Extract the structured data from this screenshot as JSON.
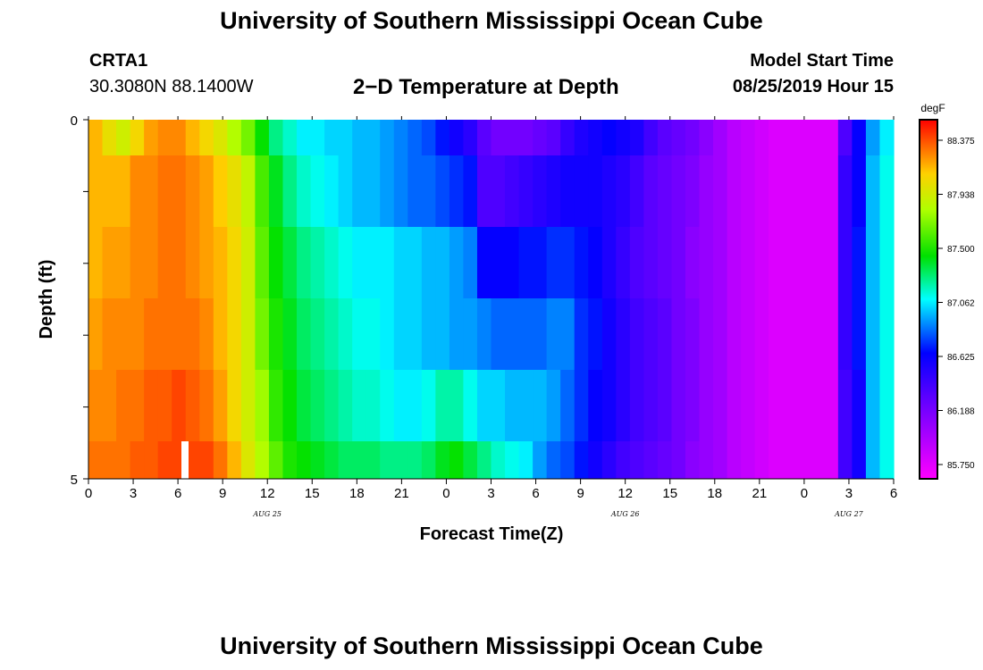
{
  "header": {
    "title": "University of Southern Mississippi Ocean Cube",
    "station_id": "CRTA1",
    "station_coords": "30.3080N 88.1400W",
    "plot_title": "2−D Temperature at Depth",
    "model_label": "Model Start Time",
    "model_time": "08/25/2019 Hour 15"
  },
  "footer": {
    "title": "University of Southern Mississippi Ocean Cube"
  },
  "chart_data": {
    "type": "heatmap",
    "xlabel": "Forecast Time(Z)",
    "ylabel": "Depth (ft)",
    "x_tick_labels": [
      "0",
      "3",
      "6",
      "9",
      "12",
      "15",
      "18",
      "21",
      "0",
      "3",
      "6",
      "9",
      "12",
      "15",
      "18",
      "21",
      "0",
      "3",
      "6"
    ],
    "x_date_labels": [
      {
        "label": "AUG 25",
        "tick_index": 4
      },
      {
        "label": "AUG 26",
        "tick_index": 12
      },
      {
        "label": "AUG 27",
        "tick_index": 17
      }
    ],
    "y_tick_labels": [
      "0",
      "5"
    ],
    "ylim": [
      0,
      5
    ],
    "hours_total": 54,
    "colorbar": {
      "unit": "degF",
      "min": 85.55,
      "max": 88.6,
      "tick_labels": [
        "88.375",
        "87.938",
        "87.500",
        "87.062",
        "86.625",
        "86.188",
        "85.750"
      ]
    },
    "depth_bands": [
      "0-0.5",
      "0.5-1.5",
      "1.5-2.5",
      "2.5-3.5",
      "3.5-4.5",
      "4.5-5"
    ],
    "rows": [
      [
        88.2,
        88.05,
        87.95,
        88.1,
        88.25,
        88.3,
        88.3,
        88.2,
        88.1,
        88.0,
        87.85,
        87.7,
        87.45,
        87.25,
        87.15,
        87.05,
        87.05,
        87.0,
        87.0,
        86.95,
        86.95,
        86.9,
        86.85,
        86.8,
        86.75,
        86.65,
        86.55,
        86.45,
        86.25,
        86.15,
        86.15,
        86.15,
        86.2,
        86.25,
        86.4,
        86.5,
        86.55,
        86.6,
        86.55,
        86.5,
        86.35,
        86.25,
        86.2,
        86.15,
        86.05,
        85.95,
        85.85,
        85.8,
        85.75,
        85.7,
        85.7,
        85.7,
        85.7,
        85.7,
        86.3,
        86.6,
        86.9,
        87.05
      ],
      [
        88.2,
        88.2,
        88.2,
        88.3,
        88.3,
        88.35,
        88.35,
        88.3,
        88.25,
        88.15,
        88.05,
        87.9,
        87.6,
        87.4,
        87.25,
        87.15,
        87.1,
        87.05,
        87.0,
        86.95,
        86.95,
        86.9,
        86.85,
        86.8,
        86.8,
        86.75,
        86.7,
        86.65,
        86.3,
        86.3,
        86.35,
        86.4,
        86.45,
        86.5,
        86.55,
        86.55,
        86.55,
        86.5,
        86.45,
        86.35,
        86.25,
        86.2,
        86.15,
        86.1,
        86.0,
        85.95,
        85.85,
        85.8,
        85.75,
        85.7,
        85.7,
        85.7,
        85.7,
        85.7,
        86.4,
        86.6,
        86.95,
        87.1
      ],
      [
        88.2,
        88.25,
        88.25,
        88.3,
        88.3,
        88.35,
        88.35,
        88.3,
        88.25,
        88.2,
        88.1,
        87.95,
        87.65,
        87.45,
        87.35,
        87.25,
        87.2,
        87.15,
        87.1,
        87.05,
        87.05,
        87.05,
        87.0,
        87.0,
        86.95,
        86.95,
        86.9,
        86.85,
        86.6,
        86.6,
        86.6,
        86.65,
        86.65,
        86.7,
        86.7,
        86.65,
        86.6,
        86.5,
        86.4,
        86.3,
        86.25,
        86.2,
        86.15,
        86.05,
        86.0,
        85.95,
        85.85,
        85.8,
        85.75,
        85.7,
        85.7,
        85.7,
        85.7,
        85.7,
        86.4,
        86.65,
        86.95,
        87.1
      ],
      [
        88.25,
        88.3,
        88.3,
        88.3,
        88.35,
        88.35,
        88.35,
        88.35,
        88.3,
        88.2,
        88.1,
        87.95,
        87.7,
        87.5,
        87.4,
        87.3,
        87.25,
        87.2,
        87.15,
        87.1,
        87.1,
        87.05,
        87.0,
        87.0,
        86.95,
        86.95,
        86.9,
        86.9,
        86.85,
        86.8,
        86.8,
        86.8,
        86.8,
        86.85,
        86.85,
        86.7,
        86.65,
        86.55,
        86.45,
        86.35,
        86.3,
        86.25,
        86.15,
        86.1,
        86.0,
        85.95,
        85.85,
        85.8,
        85.75,
        85.7,
        85.7,
        85.7,
        85.7,
        85.7,
        86.4,
        86.65,
        86.95,
        87.1
      ],
      [
        88.3,
        88.3,
        88.35,
        88.35,
        88.4,
        88.4,
        88.45,
        88.4,
        88.35,
        88.25,
        88.1,
        87.95,
        87.8,
        87.55,
        87.45,
        87.35,
        87.3,
        87.25,
        87.2,
        87.15,
        87.15,
        87.1,
        87.05,
        87.05,
        87.1,
        87.2,
        87.2,
        87.1,
        87.0,
        87.0,
        86.95,
        86.95,
        86.95,
        86.9,
        86.8,
        86.7,
        86.6,
        86.55,
        86.45,
        86.35,
        86.3,
        86.25,
        86.15,
        86.1,
        86.0,
        85.95,
        85.85,
        85.8,
        85.75,
        85.7,
        85.7,
        85.7,
        85.7,
        85.7,
        86.35,
        86.55,
        86.95,
        87.1
      ],
      [
        88.35,
        88.35,
        88.35,
        88.4,
        88.4,
        88.45,
        88.45,
        88.45,
        88.45,
        88.35,
        88.2,
        88.0,
        87.85,
        87.65,
        87.5,
        87.45,
        87.4,
        87.35,
        87.3,
        87.3,
        87.3,
        87.25,
        87.25,
        87.25,
        87.3,
        87.4,
        87.45,
        87.35,
        87.25,
        87.15,
        87.1,
        87.05,
        86.9,
        86.8,
        86.75,
        86.65,
        86.55,
        86.45,
        86.35,
        86.3,
        86.25,
        86.2,
        86.15,
        86.05,
        86.0,
        85.95,
        85.85,
        85.8,
        85.75,
        85.7,
        85.7,
        85.7,
        85.7,
        85.7,
        86.35,
        86.55,
        86.95,
        87.1
      ]
    ]
  }
}
